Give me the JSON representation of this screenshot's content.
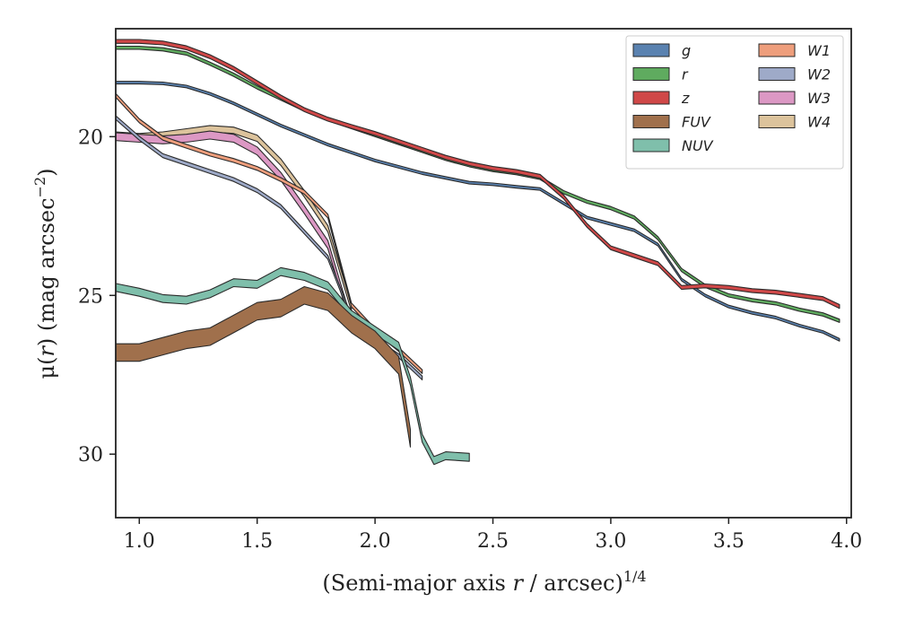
{
  "chart_data": {
    "type": "area",
    "xlabel_main": "(Semi-major axis ",
    "xlabel_var": "r",
    "xlabel_tail": " / arcsec)",
    "xlabel_sup": "1/4",
    "ylabel_main": "μ(",
    "ylabel_var": "r",
    "ylabel_tail": ") (mag arcsec",
    "ylabel_sup": "−2",
    "ylabel_close": ")",
    "xlim": [
      0.9,
      4.02
    ],
    "ylim": [
      32.0,
      16.6
    ],
    "y_inverted": true,
    "xticks": [
      1.0,
      1.5,
      2.0,
      2.5,
      3.0,
      3.5,
      4.0
    ],
    "xtick_labels": [
      "1.0",
      "1.5",
      "2.0",
      "2.5",
      "3.0",
      "3.5",
      "4.0"
    ],
    "yticks": [
      20,
      25,
      30
    ],
    "ytick_labels": [
      "20",
      "25",
      "30"
    ],
    "grid": false,
    "legend_position": "top-right",
    "legend_columns": 2,
    "series": [
      {
        "name": "g",
        "color": "#5a82b0",
        "width": 0.08,
        "x": [
          0.9,
          1.0,
          1.1,
          1.2,
          1.3,
          1.4,
          1.5,
          1.6,
          1.7,
          1.8,
          1.9,
          2.0,
          2.1,
          2.2,
          2.3,
          2.4,
          2.5,
          2.6,
          2.7,
          2.8,
          2.9,
          3.0,
          3.1,
          3.2,
          3.3,
          3.4,
          3.5,
          3.6,
          3.7,
          3.8,
          3.9,
          3.97
        ],
        "y": [
          18.3,
          18.3,
          18.32,
          18.42,
          18.65,
          18.95,
          19.3,
          19.65,
          19.95,
          20.25,
          20.5,
          20.75,
          20.95,
          21.15,
          21.3,
          21.45,
          21.5,
          21.58,
          21.65,
          22.1,
          22.55,
          22.75,
          22.95,
          23.4,
          24.5,
          25.0,
          25.35,
          25.55,
          25.7,
          25.95,
          26.15,
          26.4
        ]
      },
      {
        "name": "r",
        "color": "#5fab5f",
        "width": 0.1,
        "x": [
          0.9,
          1.0,
          1.1,
          1.2,
          1.3,
          1.4,
          1.5,
          1.6,
          1.7,
          1.8,
          1.9,
          2.0,
          2.1,
          2.2,
          2.3,
          2.4,
          2.5,
          2.6,
          2.7,
          2.8,
          2.9,
          3.0,
          3.1,
          3.2,
          3.3,
          3.4,
          3.5,
          3.6,
          3.7,
          3.8,
          3.9,
          3.97
        ],
        "y": [
          17.2,
          17.2,
          17.25,
          17.38,
          17.7,
          18.05,
          18.45,
          18.8,
          19.15,
          19.45,
          19.7,
          19.95,
          20.2,
          20.45,
          20.7,
          20.9,
          21.05,
          21.15,
          21.3,
          21.75,
          22.05,
          22.25,
          22.55,
          23.2,
          24.2,
          24.7,
          25.0,
          25.15,
          25.25,
          25.45,
          25.6,
          25.8
        ]
      },
      {
        "name": "z",
        "color": "#d04848",
        "width": 0.12,
        "x": [
          0.9,
          1.0,
          1.1,
          1.2,
          1.3,
          1.4,
          1.5,
          1.6,
          1.7,
          1.8,
          1.9,
          2.0,
          2.1,
          2.2,
          2.3,
          2.4,
          2.5,
          2.6,
          2.7,
          2.8,
          2.9,
          3.0,
          3.1,
          3.2,
          3.3,
          3.4,
          3.5,
          3.6,
          3.7,
          3.8,
          3.9,
          3.97
        ],
        "y": [
          17.0,
          17.0,
          17.05,
          17.2,
          17.48,
          17.85,
          18.3,
          18.75,
          19.15,
          19.45,
          19.68,
          19.9,
          20.15,
          20.4,
          20.65,
          20.85,
          21.0,
          21.1,
          21.25,
          21.9,
          22.8,
          23.5,
          23.75,
          24.0,
          24.75,
          24.7,
          24.75,
          24.85,
          24.9,
          25.0,
          25.1,
          25.35
        ]
      },
      {
        "name": "FUV",
        "color": "#a0704c",
        "width": 0.55,
        "x": [
          0.9,
          1.0,
          1.1,
          1.2,
          1.3,
          1.4,
          1.5,
          1.6,
          1.7,
          1.8,
          1.9,
          2.0,
          2.1,
          2.15
        ],
        "y": [
          26.8,
          26.8,
          26.6,
          26.4,
          26.3,
          25.9,
          25.5,
          25.4,
          25.0,
          25.2,
          25.9,
          26.4,
          27.2,
          29.5
        ]
      },
      {
        "name": "NUV",
        "color": "#7fbfab",
        "width": 0.25,
        "x": [
          0.9,
          1.0,
          1.1,
          1.2,
          1.3,
          1.4,
          1.5,
          1.6,
          1.7,
          1.8,
          1.9,
          2.0,
          2.1,
          2.15,
          2.2,
          2.25,
          2.3,
          2.4
        ],
        "y": [
          24.75,
          24.9,
          25.1,
          25.15,
          24.95,
          24.6,
          24.65,
          24.25,
          24.4,
          24.7,
          25.6,
          26.1,
          26.6,
          27.7,
          29.5,
          30.2,
          30.05,
          30.1
        ]
      },
      {
        "name": "W1",
        "color": "#ee9e7c",
        "width": 0.12,
        "x": [
          0.9,
          1.0,
          1.1,
          1.2,
          1.3,
          1.4,
          1.5,
          1.6,
          1.7,
          1.8,
          1.9,
          2.0,
          2.1,
          2.2
        ],
        "y": [
          18.7,
          19.5,
          20.05,
          20.3,
          20.55,
          20.75,
          21.0,
          21.35,
          21.75,
          22.5,
          25.3,
          26.1,
          26.7,
          27.4
        ]
      },
      {
        "name": "W2",
        "color": "#9eaac8",
        "width": 0.12,
        "x": [
          0.9,
          1.0,
          1.1,
          1.2,
          1.3,
          1.4,
          1.5,
          1.6,
          1.7,
          1.8,
          1.9,
          2.0,
          2.1,
          2.2
        ],
        "y": [
          19.4,
          20.05,
          20.6,
          20.85,
          21.1,
          21.35,
          21.7,
          22.2,
          23.0,
          23.8,
          25.7,
          26.4,
          26.9,
          27.6
        ]
      },
      {
        "name": "W3",
        "color": "#dc98c4",
        "width": 0.25,
        "x": [
          0.9,
          1.0,
          1.1,
          1.2,
          1.3,
          1.4,
          1.5,
          1.6,
          1.7,
          1.8,
          1.9
        ],
        "y": [
          20.0,
          20.05,
          20.1,
          20.05,
          19.95,
          20.05,
          20.45,
          21.25,
          22.3,
          23.4,
          25.9
        ]
      },
      {
        "name": "W4",
        "color": "#dcc39c",
        "width": 0.2,
        "x": [
          0.9,
          1.0,
          1.1,
          1.2,
          1.3,
          1.4,
          1.5,
          1.6,
          1.7,
          1.8,
          1.9
        ],
        "y": [
          19.95,
          20.0,
          19.95,
          19.85,
          19.75,
          19.8,
          20.05,
          20.8,
          21.8,
          22.9,
          25.4
        ]
      }
    ]
  }
}
